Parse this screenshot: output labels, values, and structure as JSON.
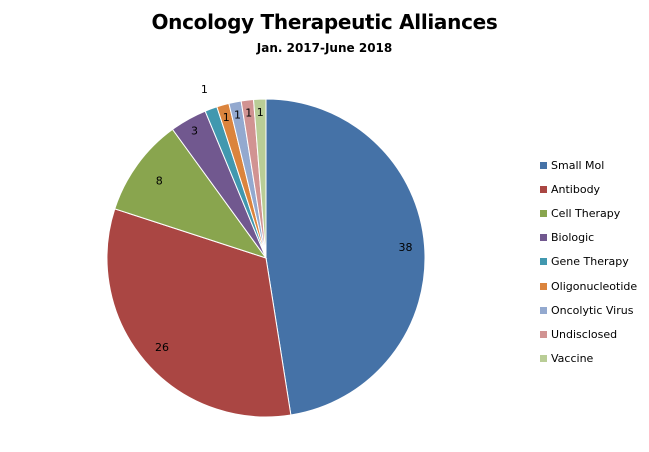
{
  "chart_data": {
    "type": "pie",
    "title": "Oncology Therapeutic Alliances",
    "subtitle": "Jan. 2017-June 2018",
    "categories": [
      "Small Mol",
      "Antibody",
      "Cell Therapy",
      "Biologic",
      "Gene Therapy",
      "Oligonucleotide",
      "Oncolytic Virus",
      "Undisclosed",
      "Vaccine"
    ],
    "values": [
      38,
      26,
      8,
      3,
      1,
      1,
      1,
      1,
      1
    ],
    "colors": [
      "#4572A7",
      "#AA4643",
      "#89A54E",
      "#71588F",
      "#4198AF",
      "#DB843D",
      "#93A9CF",
      "#D19392",
      "#B9CD96"
    ],
    "data_labels": [
      "38",
      "26",
      "8",
      "3",
      "1",
      "1",
      "1",
      "1",
      "1"
    ],
    "legend_position": "right",
    "start_angle_deg": 0,
    "direction": "clockwise"
  },
  "legend": {
    "items": [
      {
        "label": "Small Mol",
        "color": "#4572A7"
      },
      {
        "label": "Antibody",
        "color": "#AA4643"
      },
      {
        "label": "Cell Therapy",
        "color": "#89A54E"
      },
      {
        "label": "Biologic",
        "color": "#71588F"
      },
      {
        "label": "Gene Therapy",
        "color": "#4198AF"
      },
      {
        "label": "Oligonucleotide",
        "color": "#DB843D"
      },
      {
        "label": "Oncolytic Virus",
        "color": "#93A9CF"
      },
      {
        "label": "Undisclosed",
        "color": "#D19392"
      },
      {
        "label": "Vaccine",
        "color": "#B9CD96"
      }
    ]
  }
}
